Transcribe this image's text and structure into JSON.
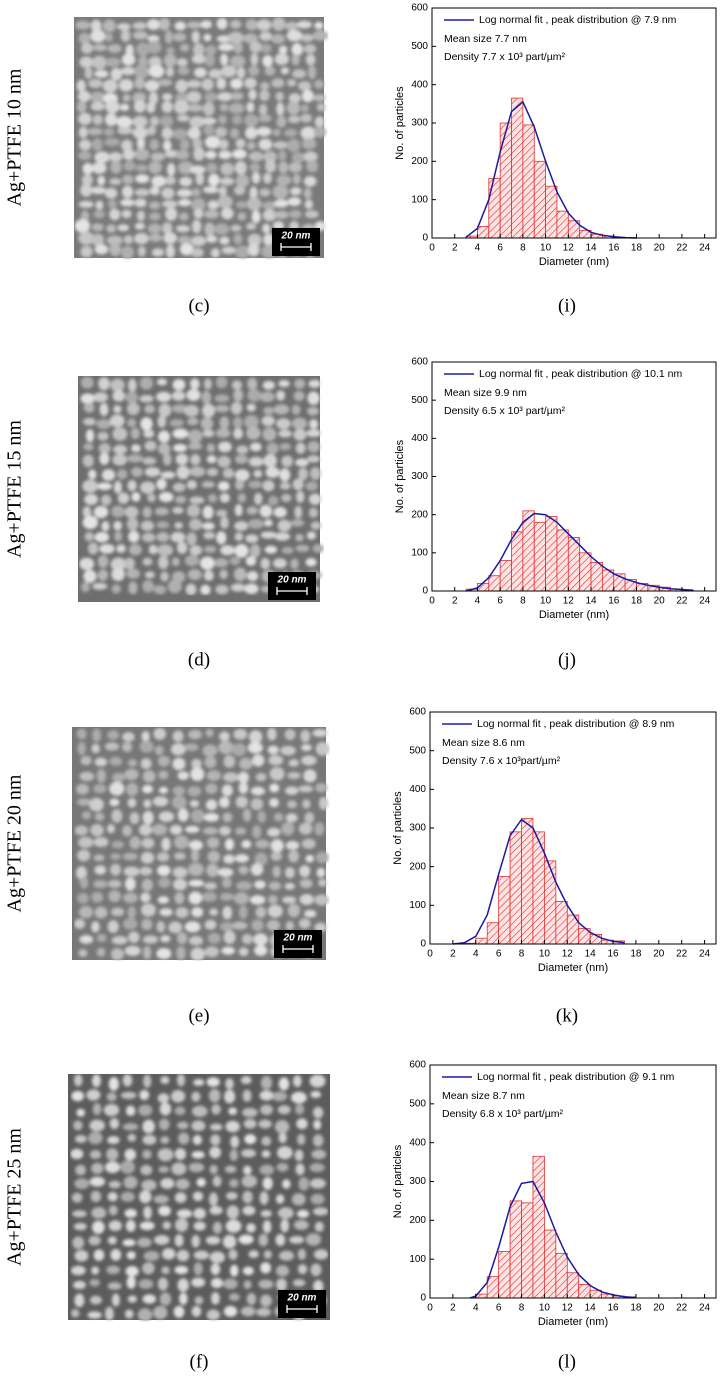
{
  "rows": [
    {
      "label": "Ag+PTFE 10 nm",
      "image_caption": "(c)",
      "chart_caption": "(i)",
      "scale_bar": "20 nm"
    },
    {
      "label": "Ag+PTFE 15 nm",
      "image_caption": "(d)",
      "chart_caption": "(j)",
      "scale_bar": "20 nm"
    },
    {
      "label": "Ag+PTFE 20 nm",
      "image_caption": "(e)",
      "chart_caption": "(k)",
      "scale_bar": "20 nm"
    },
    {
      "label": "Ag+PTFE 25 nm",
      "image_caption": "(f)",
      "chart_caption": "(l)",
      "scale_bar": "20 nm"
    }
  ],
  "chart_data": [
    {
      "type": "histogram",
      "x_label": "Diameter (nm)",
      "y_label": "No. of particles",
      "bins": [
        3,
        4,
        5,
        6,
        7,
        8,
        9,
        10,
        11,
        12,
        13,
        14,
        15,
        16,
        17,
        18
      ],
      "counts": [
        5,
        30,
        155,
        300,
        365,
        295,
        200,
        135,
        70,
        45,
        20,
        10,
        5,
        2,
        1
      ],
      "bar_color": "#e03030",
      "series": [
        {
          "name": "Log normal fit , peak distribution  @ 7.9 nm",
          "color": "#1a1aa0",
          "x": [
            3,
            4,
            5,
            6,
            7,
            8,
            9,
            10,
            11,
            12,
            13,
            14,
            15,
            16,
            17,
            18
          ],
          "values": [
            2,
            25,
            100,
            225,
            330,
            355,
            290,
            200,
            120,
            65,
            33,
            15,
            7,
            3,
            1,
            0
          ]
        }
      ],
      "annotations": [
        "Mean size  7.7  nm",
        "Density 7.7 x 10³ part/µm²"
      ],
      "xlim": [
        0,
        25
      ],
      "ylim": [
        0,
        600
      ],
      "xticks": [
        0,
        2,
        4,
        6,
        8,
        10,
        12,
        14,
        16,
        18,
        20,
        22,
        24
      ],
      "yticks": [
        0,
        100,
        200,
        300,
        400,
        500,
        600
      ]
    },
    {
      "type": "histogram",
      "x_label": "Diameter (nm)",
      "y_label": "No. of particles",
      "bins": [
        3,
        4,
        5,
        6,
        7,
        8,
        9,
        10,
        11,
        12,
        13,
        14,
        15,
        16,
        17,
        18,
        19,
        20,
        21,
        22,
        23
      ],
      "counts": [
        5,
        20,
        40,
        80,
        155,
        210,
        180,
        195,
        160,
        140,
        100,
        75,
        55,
        45,
        30,
        20,
        15,
        10,
        5,
        3
      ],
      "bar_color": "#e03030",
      "series": [
        {
          "name": "Log normal fit , peak distribution  @ 10.1 nm",
          "color": "#1a1aa0",
          "x": [
            3,
            4,
            5,
            6,
            7,
            8,
            9,
            10,
            11,
            12,
            13,
            14,
            15,
            16,
            17,
            18,
            19,
            20,
            21,
            22,
            23
          ],
          "values": [
            0,
            8,
            35,
            80,
            135,
            180,
            203,
            200,
            180,
            150,
            120,
            90,
            65,
            45,
            32,
            22,
            15,
            10,
            6,
            4,
            2
          ]
        }
      ],
      "annotations": [
        "Mean size  9.9  nm",
        "Density 6.5 x 10³ part/µm²"
      ],
      "xlim": [
        0,
        25
      ],
      "ylim": [
        0,
        600
      ],
      "xticks": [
        0,
        2,
        4,
        6,
        8,
        10,
        12,
        14,
        16,
        18,
        20,
        22,
        24
      ],
      "yticks": [
        0,
        100,
        200,
        300,
        400,
        500,
        600
      ]
    },
    {
      "type": "histogram",
      "x_label": "Diameter (nm)",
      "y_label": "No. of particles",
      "bins": [
        3,
        4,
        5,
        6,
        7,
        8,
        9,
        10,
        11,
        12,
        13,
        14,
        15,
        16,
        17
      ],
      "counts": [
        2,
        15,
        55,
        175,
        290,
        325,
        290,
        215,
        110,
        75,
        40,
        25,
        10,
        8
      ],
      "bar_color": "#e03030",
      "series": [
        {
          "name": "Log normal fit , peak distribution  @ 8.9 nm",
          "color": "#1a1aa0",
          "x": [
            2,
            3,
            4,
            5,
            6,
            7,
            8,
            9,
            10,
            11,
            12,
            13,
            14,
            15,
            16,
            17
          ],
          "values": [
            0,
            3,
            20,
            75,
            180,
            280,
            322,
            300,
            235,
            160,
            100,
            55,
            30,
            15,
            7,
            3
          ]
        }
      ],
      "annotations": [
        "Mean size 8.6  nm",
        "Density  7.6 x 10³part/µm²"
      ],
      "xlim": [
        0,
        25
      ],
      "ylim": [
        0,
        600
      ],
      "xticks": [
        0,
        2,
        4,
        6,
        8,
        10,
        12,
        14,
        16,
        18,
        20,
        22,
        24
      ],
      "yticks": [
        0,
        100,
        200,
        300,
        400,
        500,
        600
      ]
    },
    {
      "type": "histogram",
      "x_label": "Diameter (nm)",
      "y_label": "No. of particles",
      "bins": [
        4,
        5,
        6,
        7,
        8,
        9,
        10,
        11,
        12,
        13,
        14,
        15,
        16,
        17,
        18
      ],
      "counts": [
        10,
        55,
        120,
        250,
        245,
        365,
        175,
        115,
        65,
        35,
        20,
        10,
        5,
        3
      ],
      "bar_color": "#e03030",
      "series": [
        {
          "name": "Log normal fit , peak distribution  @ 9.1 nm",
          "color": "#1a1aa0",
          "x": [
            3.5,
            4,
            5,
            6,
            7,
            8,
            9,
            10,
            11,
            12,
            13,
            14,
            15,
            16,
            17,
            18
          ],
          "values": [
            0,
            5,
            40,
            130,
            235,
            295,
            300,
            245,
            170,
            105,
            60,
            32,
            16,
            8,
            3,
            1
          ]
        }
      ],
      "annotations": [
        "Mean size  8.7  nm",
        "Density  6.8 x 10³ part/µm²"
      ],
      "xlim": [
        0,
        25
      ],
      "ylim": [
        0,
        600
      ],
      "xticks": [
        0,
        2,
        4,
        6,
        8,
        10,
        12,
        14,
        16,
        18,
        20,
        22,
        24
      ],
      "yticks": [
        0,
        100,
        200,
        300,
        400,
        500,
        600
      ]
    }
  ]
}
